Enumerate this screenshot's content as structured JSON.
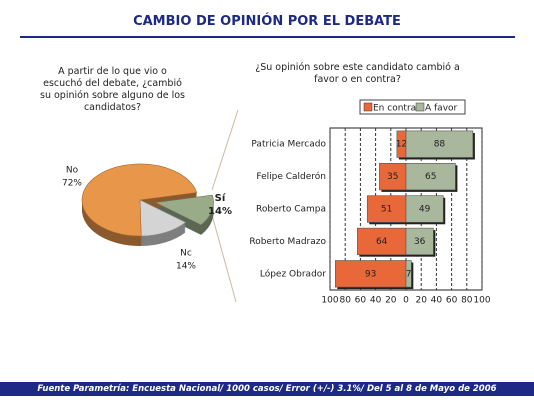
{
  "title": "CAMBIO DE OPINIÓN POR EL DEBATE",
  "footer": "Fuente Parametría: Encuesta Nacional/ 1000 casos/ Error (+/-) 3.1%/ Del 5 al 8 de Mayo  de 2006",
  "chart_data": [
    {
      "type": "pie",
      "title": "A partir de lo que vio o escuchó del debate, ¿cambió su opinión sobre alguno de los candidatos?",
      "labels": [
        "Sí",
        "Nc",
        "No"
      ],
      "values": [
        14,
        14,
        72
      ],
      "value_labels": [
        "14%",
        "14%",
        "72%"
      ],
      "colors": [
        "#9aab8a",
        "#d4d4d4",
        "#e8964a"
      ]
    },
    {
      "type": "diverging-bar",
      "title": "¿Su opinión sobre este candidato cambió a favor o en contra?",
      "categories": [
        "Patricia Mercado",
        "Felipe Calderón",
        "Roberto Campa",
        "Roberto Madrazo",
        "López Obrador"
      ],
      "series": [
        {
          "name": "En contra",
          "color": "#e8683a",
          "values": [
            12,
            35,
            51,
            64,
            93
          ]
        },
        {
          "name": "A favor",
          "color": "#a9b89c",
          "values": [
            88,
            65,
            49,
            36,
            7
          ]
        }
      ],
      "xlim": [
        -100,
        100
      ],
      "xticks": [
        {
          "value": -100,
          "label": "100"
        },
        {
          "value": -80,
          "label": "80"
        },
        {
          "value": -60,
          "label": "60"
        },
        {
          "value": -40,
          "label": "40"
        },
        {
          "value": -20,
          "label": "20"
        },
        0,
        20,
        40,
        60,
        80,
        100
      ],
      "grid": true,
      "legend": "top"
    }
  ]
}
